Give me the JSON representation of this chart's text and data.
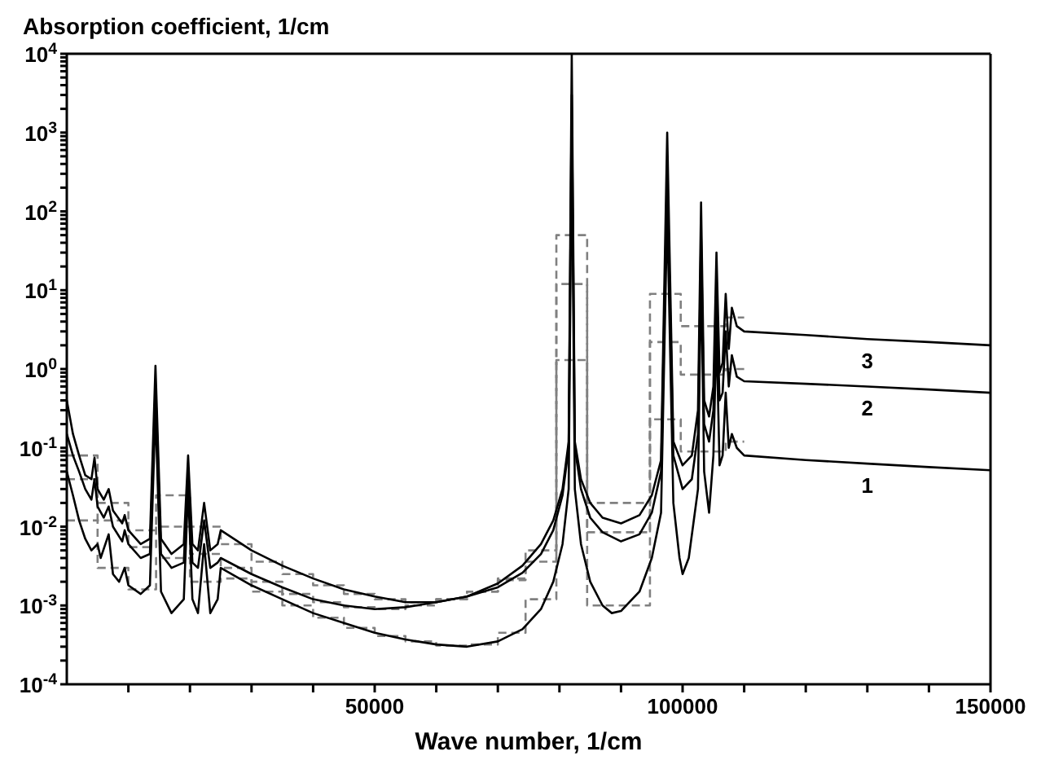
{
  "chart_data": {
    "type": "line",
    "ylabel": "Absorption coefficient, 1/cm",
    "xlabel": "Wave number, 1/cm",
    "xlim": [
      0,
      150000
    ],
    "ylim": [
      0.0001,
      10000
    ],
    "log": "y",
    "marker": "none",
    "line_style": "solid",
    "xticks": [
      {
        "value": 10000,
        "label": null
      },
      {
        "value": 20000,
        "label": null
      },
      {
        "value": 30000,
        "label": null
      },
      {
        "value": 40000,
        "label": null
      },
      50000,
      {
        "value": 60000,
        "label": null
      },
      {
        "value": 70000,
        "label": null
      },
      {
        "value": 80000,
        "label": null
      },
      {
        "value": 90000,
        "label": null
      },
      100000,
      {
        "value": 110000,
        "label": null
      },
      {
        "value": 120000,
        "label": null
      },
      {
        "value": 130000,
        "label": null
      },
      {
        "value": 140000,
        "label": null
      },
      150000
    ],
    "yticks": [
      {
        "value": 0.0001,
        "label": "10$^{-4}$"
      },
      {
        "value": 0.001,
        "label": "10$^{-3}$"
      },
      {
        "value": 0.01,
        "label": "10$^{-2}$"
      },
      {
        "value": 0.1,
        "label": "10$^{-1}$"
      },
      {
        "value": 1,
        "label": "10$^{0}$"
      },
      {
        "value": 10,
        "label": "10$^{1}$"
      },
      {
        "value": 100,
        "label": "10$^{2}$"
      },
      {
        "value": 1000,
        "label": "10$^{3}$"
      },
      {
        "value": 10000,
        "label": "10$^{4}$"
      },
      {
        "value": 0.0002,
        "label": null
      },
      {
        "value": 0.0003,
        "label": null
      },
      {
        "value": 0.0004,
        "label": null
      },
      {
        "value": 0.0005,
        "label": null
      },
      {
        "value": 0.0006,
        "label": null
      },
      {
        "value": 0.0007,
        "label": null
      },
      {
        "value": 0.0008,
        "label": null
      },
      {
        "value": 0.0009,
        "label": null
      },
      {
        "value": 0.002,
        "label": null
      },
      {
        "value": 0.003,
        "label": null
      },
      {
        "value": 0.004,
        "label": null
      },
      {
        "value": 0.005,
        "label": null
      },
      {
        "value": 0.006,
        "label": null
      },
      {
        "value": 0.007,
        "label": null
      },
      {
        "value": 0.008,
        "label": null
      },
      {
        "value": 0.009,
        "label": null
      },
      {
        "value": 0.02,
        "label": null
      },
      {
        "value": 0.03,
        "label": null
      },
      {
        "value": 0.04,
        "label": null
      },
      {
        "value": 0.05,
        "label": null
      },
      {
        "value": 0.06,
        "label": null
      },
      {
        "value": 0.07,
        "label": null
      },
      {
        "value": 0.08,
        "label": null
      },
      {
        "value": 0.09,
        "label": null
      },
      {
        "value": 0.2,
        "label": null
      },
      {
        "value": 0.3,
        "label": null
      },
      {
        "value": 0.4,
        "label": null
      },
      {
        "value": 0.5,
        "label": null
      },
      {
        "value": 0.6,
        "label": null
      },
      {
        "value": 0.7,
        "label": null
      },
      {
        "value": 0.8,
        "label": null
      },
      {
        "value": 0.9,
        "label": null
      },
      {
        "value": 2,
        "label": null
      },
      {
        "value": 3,
        "label": null
      },
      {
        "value": 4,
        "label": null
      },
      {
        "value": 5,
        "label": null
      },
      {
        "value": 6,
        "label": null
      },
      {
        "value": 7,
        "label": null
      },
      {
        "value": 8,
        "label": null
      },
      {
        "value": 9,
        "label": null
      },
      {
        "value": 20,
        "label": null
      },
      {
        "value": 30,
        "label": null
      },
      {
        "value": 40,
        "label": null
      },
      {
        "value": 50,
        "label": null
      },
      {
        "value": 60,
        "label": null
      },
      {
        "value": 70,
        "label": null
      },
      {
        "value": 80,
        "label": null
      },
      {
        "value": 90,
        "label": null
      },
      {
        "value": 200,
        "label": null
      },
      {
        "value": 300,
        "label": null
      },
      {
        "value": 400,
        "label": null
      },
      {
        "value": 500,
        "label": null
      },
      {
        "value": 600,
        "label": null
      },
      {
        "value": 700,
        "label": null
      },
      {
        "value": 800,
        "label": null
      },
      {
        "value": 900,
        "label": null
      },
      {
        "value": 2000,
        "label": null
      },
      {
        "value": 3000,
        "label": null
      },
      {
        "value": 4000,
        "label": null
      },
      {
        "value": 5000,
        "label": null
      },
      {
        "value": 6000,
        "label": null
      },
      {
        "value": 7000,
        "label": null
      },
      {
        "value": 8000,
        "label": null
      },
      {
        "value": 9000,
        "label": null
      }
    ],
    "series": [
      {
        "type": "step",
        "color": "#808080",
        "line_style": "dashed",
        "x": [
          0,
          5000,
          10000,
          14500,
          20000,
          25000,
          30000,
          35000,
          40000,
          45000,
          50000,
          55000,
          60000,
          65000,
          70000,
          74500,
          79500,
          84500,
          94700,
          99700,
          107000,
          110000
        ],
        "values": [
          0.08,
          0.02,
          0.009,
          0.025,
          0.01,
          0.006,
          0.0036,
          0.0025,
          0.0018,
          0.0014,
          0.0012,
          0.0011,
          0.0012,
          0.0015,
          0.0022,
          0.005,
          50,
          0.02,
          9,
          3.5,
          4.5,
          4.5
        ]
      },
      {
        "type": "step",
        "color": "#808080",
        "line_style": "dashed",
        "x": [
          0,
          5000,
          10000,
          14500,
          20000,
          25000,
          30000,
          35000,
          40000,
          45000,
          50000,
          55000,
          60000,
          65000,
          70000,
          74500,
          79500,
          84500,
          94700,
          99700,
          107000,
          110000
        ],
        "values": [
          0.04,
          0.012,
          0.0055,
          0.01,
          0.0045,
          0.003,
          0.002,
          0.0014,
          0.0011,
          0.00095,
          0.0009,
          0.001,
          0.0012,
          0.0015,
          0.0021,
          0.0036,
          12,
          0.0085,
          2.2,
          0.85,
          1.0,
          1.0
        ]
      },
      {
        "type": "step",
        "color": "#808080",
        "line_style": "dashed",
        "x": [
          0,
          5000,
          10000,
          14500,
          20000,
          25000,
          30000,
          35000,
          40000,
          45000,
          50000,
          55000,
          60000,
          65000,
          70000,
          74500,
          79500,
          84500,
          94700,
          99700,
          107000,
          110000
        ],
        "values": [
          0.012,
          0.003,
          0.0016,
          0.004,
          0.002,
          0.0022,
          0.0015,
          0.001,
          0.0007,
          0.00052,
          0.00041,
          0.00035,
          0.00031,
          0.00032,
          0.00045,
          0.0012,
          1.3,
          0.001,
          0.23,
          0.09,
          0.12,
          0.12
        ]
      },
      {
        "name": "3",
        "color": "#000000",
        "x": [
          0,
          1000,
          2000,
          3000,
          4000,
          4500,
          5000,
          6000,
          6800,
          7500,
          9000,
          9400,
          10000,
          12000,
          13500,
          14400,
          15300,
          17000,
          19000,
          19700,
          20400,
          21300,
          22300,
          23300,
          24500,
          25000,
          30000,
          35000,
          40000,
          45000,
          50000,
          55000,
          60000,
          65000,
          70000,
          74000,
          77000,
          79000,
          80500,
          81500,
          82000,
          82500,
          83500,
          85000,
          87000,
          90000,
          93000,
          95000,
          96500,
          97500,
          98500,
          100000,
          101500,
          102500,
          103000,
          103500,
          104300,
          105000,
          105500,
          106000,
          106500,
          107000,
          107500,
          108000,
          108800,
          110000,
          120000,
          130000,
          140000,
          150000
        ],
        "values": [
          0.4,
          0.15,
          0.08,
          0.045,
          0.04,
          0.075,
          0.03,
          0.022,
          0.03,
          0.016,
          0.011,
          0.014,
          0.009,
          0.006,
          0.007,
          1.1,
          0.007,
          0.0045,
          0.006,
          0.08,
          0.006,
          0.005,
          0.02,
          0.005,
          0.006,
          0.009,
          0.005,
          0.0032,
          0.0022,
          0.0016,
          0.0013,
          0.0011,
          0.0011,
          0.0013,
          0.0019,
          0.0032,
          0.006,
          0.012,
          0.03,
          0.12,
          10000,
          0.12,
          0.04,
          0.02,
          0.013,
          0.011,
          0.014,
          0.025,
          0.07,
          1000,
          0.12,
          0.06,
          0.08,
          0.3,
          130,
          0.4,
          0.25,
          0.6,
          30,
          0.9,
          1.2,
          9,
          1.8,
          6,
          3.5,
          3,
          2.7,
          2.4,
          2.2,
          2.0
        ]
      },
      {
        "name": "2",
        "color": "#000000",
        "x": [
          0,
          1000,
          2000,
          3000,
          4000,
          4500,
          5000,
          6000,
          6800,
          7500,
          9000,
          9400,
          10000,
          12000,
          13500,
          14400,
          15300,
          17000,
          19000,
          19700,
          20400,
          21300,
          22300,
          23300,
          24500,
          25000,
          30000,
          35000,
          40000,
          45000,
          50000,
          55000,
          60000,
          65000,
          70000,
          74000,
          77000,
          79000,
          80500,
          81500,
          82000,
          82500,
          83500,
          85000,
          87000,
          90000,
          93000,
          95000,
          96500,
          97500,
          98500,
          100000,
          101500,
          102500,
          103000,
          103500,
          104300,
          105000,
          105500,
          106000,
          106500,
          107000,
          107500,
          108000,
          108800,
          110000,
          120000,
          130000,
          140000,
          150000
        ],
        "values": [
          0.15,
          0.08,
          0.05,
          0.03,
          0.022,
          0.04,
          0.018,
          0.013,
          0.018,
          0.01,
          0.0065,
          0.009,
          0.006,
          0.004,
          0.0045,
          0.6,
          0.0045,
          0.003,
          0.0035,
          0.05,
          0.0035,
          0.003,
          0.012,
          0.003,
          0.0035,
          0.004,
          0.0025,
          0.0017,
          0.0012,
          0.001,
          0.0009,
          0.00095,
          0.0011,
          0.0013,
          0.0017,
          0.0026,
          0.0045,
          0.009,
          0.025,
          0.1,
          3000,
          0.1,
          0.03,
          0.013,
          0.0085,
          0.0065,
          0.008,
          0.015,
          0.05,
          300,
          0.08,
          0.03,
          0.04,
          0.15,
          50,
          0.2,
          0.12,
          0.3,
          10,
          0.4,
          0.5,
          3,
          0.6,
          1.5,
          0.8,
          0.7,
          0.65,
          0.6,
          0.55,
          0.5
        ]
      },
      {
        "name": "1",
        "color": "#000000",
        "x": [
          0,
          1000,
          2000,
          3000,
          4000,
          5000,
          5500,
          6800,
          7500,
          8500,
          9400,
          10000,
          12000,
          13500,
          14400,
          15300,
          17000,
          19000,
          19700,
          20400,
          21300,
          22300,
          23300,
          24500,
          25000,
          30000,
          35000,
          40000,
          45000,
          50000,
          55000,
          60000,
          65000,
          70000,
          74000,
          77000,
          79000,
          80500,
          81500,
          82000,
          82500,
          83500,
          85000,
          87000,
          88500,
          90000,
          93000,
          95000,
          96500,
          97500,
          98500,
          99500,
          100000,
          101000,
          102500,
          103000,
          103500,
          104300,
          105000,
          105500,
          106000,
          106500,
          107000,
          107500,
          108000,
          108800,
          110000,
          120000,
          130000,
          140000,
          150000
        ],
        "values": [
          0.05,
          0.025,
          0.012,
          0.007,
          0.005,
          0.006,
          0.004,
          0.008,
          0.0025,
          0.002,
          0.003,
          0.0018,
          0.0014,
          0.0018,
          0.3,
          0.0015,
          0.0008,
          0.0012,
          0.03,
          0.0012,
          0.0008,
          0.006,
          0.0008,
          0.0012,
          0.003,
          0.0018,
          0.0012,
          0.0008,
          0.0006,
          0.00045,
          0.00037,
          0.00032,
          0.0003,
          0.00035,
          0.0005,
          0.0009,
          0.002,
          0.006,
          0.03,
          1000,
          0.03,
          0.006,
          0.002,
          0.001,
          0.0008,
          0.00085,
          0.0015,
          0.004,
          0.015,
          100,
          0.02,
          0.004,
          0.0025,
          0.004,
          0.03,
          20,
          0.05,
          0.015,
          0.08,
          3,
          0.06,
          0.08,
          0.5,
          0.1,
          0.15,
          0.1,
          0.08,
          0.07,
          0.063,
          0.057,
          0.052
        ]
      }
    ]
  }
}
